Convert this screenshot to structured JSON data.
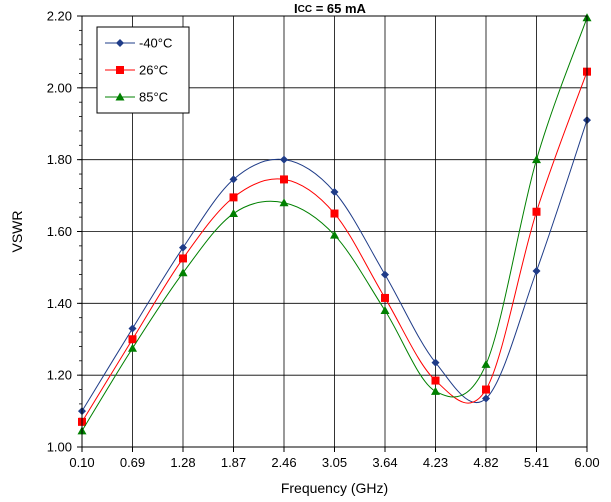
{
  "chart_data": {
    "type": "line",
    "title_main": "I",
    "title_sub": "CC",
    "title_rest": " = 65 mA",
    "xlabel": "Frequency (GHz)",
    "ylabel": "VSWR",
    "categories": [
      "0.10",
      "0.69",
      "1.28",
      "1.87",
      "2.46",
      "3.05",
      "3.64",
      "4.23",
      "4.82",
      "5.41",
      "6.00"
    ],
    "x": [
      0.1,
      0.69,
      1.28,
      1.87,
      2.46,
      3.05,
      3.64,
      4.23,
      4.82,
      5.41,
      6.0
    ],
    "xlim": [
      0.1,
      6.0
    ],
    "ylim": [
      1.0,
      2.2
    ],
    "yticks": [
      "1.00",
      "1.20",
      "1.40",
      "1.60",
      "1.80",
      "2.00",
      "2.20"
    ],
    "grid": true,
    "legend_position": "top-left",
    "series": [
      {
        "name": "-40°C",
        "color": "#1f3c88",
        "marker": "diamond",
        "values": [
          1.1,
          1.33,
          1.555,
          1.745,
          1.8,
          1.71,
          1.48,
          1.235,
          1.135,
          1.49,
          1.91
        ]
      },
      {
        "name": "26°C",
        "color": "#ff0000",
        "marker": "square",
        "values": [
          1.07,
          1.3,
          1.525,
          1.695,
          1.745,
          1.65,
          1.415,
          1.185,
          1.16,
          1.655,
          2.045
        ]
      },
      {
        "name": "85°C",
        "color": "#008000",
        "marker": "triangle",
        "values": [
          1.045,
          1.275,
          1.485,
          1.65,
          1.68,
          1.59,
          1.38,
          1.155,
          1.23,
          1.8,
          2.195
        ]
      }
    ]
  }
}
